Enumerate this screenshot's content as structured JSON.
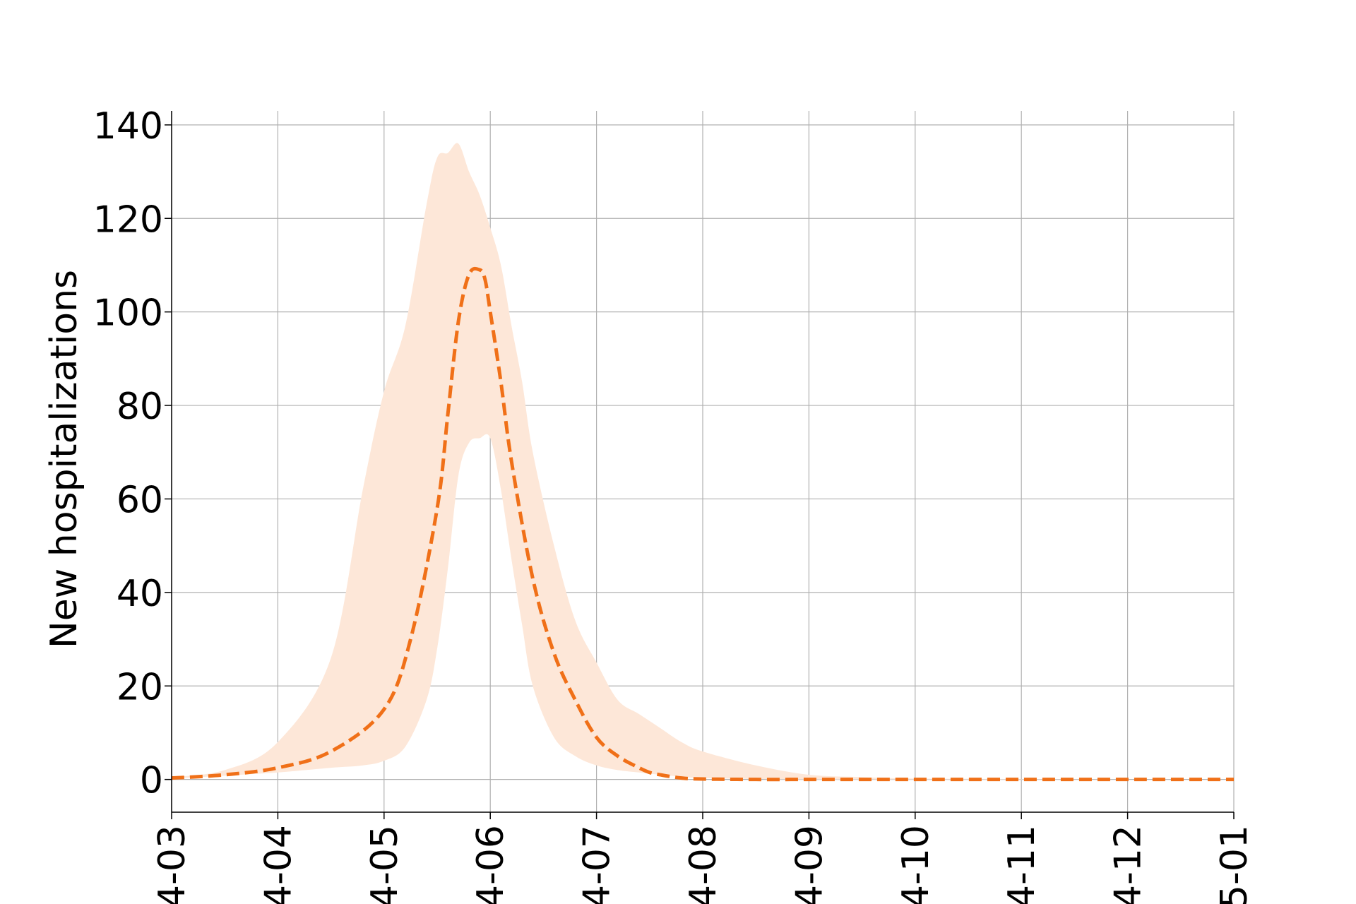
{
  "chart_data": {
    "type": "line",
    "title": "",
    "xlabel": "",
    "ylabel": "New hospitalizations",
    "x_ticks": [
      "4-03",
      "4-04",
      "4-05",
      "4-06",
      "4-07",
      "4-08",
      "4-09",
      "4-10",
      "4-11",
      "4-12",
      "5-01"
    ],
    "xlim": [
      "4-03",
      "5-01"
    ],
    "y_ticks": [
      0,
      20,
      40,
      60,
      80,
      100,
      120,
      140
    ],
    "ylim": [
      -7,
      143
    ],
    "grid": true,
    "colors": {
      "line": "#f07018",
      "band": "#fde7d8",
      "grid": "#b0b0b0",
      "axis": "#000000"
    },
    "series": [
      {
        "style": "dashed",
        "x": [
          0,
          0.5,
          1,
          1.5,
          2,
          2.25,
          2.5,
          2.6,
          2.7,
          2.8,
          2.9,
          2.95,
          3.0,
          3.1,
          3.2,
          3.4,
          3.6,
          3.8,
          4.0,
          4.2,
          4.4,
          4.5,
          4.6,
          4.8,
          5.0,
          5.5,
          6.0,
          6.5,
          7,
          8,
          9,
          10
        ],
        "values": [
          0.3,
          1,
          2.5,
          6,
          15,
          30,
          58,
          78,
          98,
          108,
          109,
          107,
          100,
          85,
          68,
          43,
          27,
          17,
          9,
          5,
          2.5,
          1.5,
          1,
          0.3,
          0.1,
          0,
          0,
          0,
          0,
          0,
          0,
          0
        ]
      }
    ],
    "band": {
      "x": [
        0,
        0.5,
        1,
        1.5,
        1.8,
        2,
        2.2,
        2.4,
        2.5,
        2.6,
        2.7,
        2.8,
        2.9,
        3.0,
        3.1,
        3.2,
        3.3,
        3.4,
        3.6,
        3.8,
        4.0,
        4.2,
        4.4,
        4.6,
        4.8,
        5.0,
        5.5,
        6.0,
        6.5,
        7,
        8,
        9,
        10
      ],
      "lower": [
        0.2,
        0.8,
        1.5,
        2.5,
        3,
        4,
        7,
        17,
        28,
        45,
        65,
        72,
        73,
        73,
        62,
        47,
        33,
        20,
        9,
        5,
        3,
        2,
        1.5,
        1,
        0.6,
        0.3,
        0.1,
        0,
        0,
        0,
        0,
        0,
        0
      ],
      "upper": [
        0.5,
        2,
        8,
        26,
        62,
        83,
        97,
        123,
        133,
        134,
        136,
        130,
        125,
        118,
        110,
        97,
        85,
        70,
        50,
        34,
        25,
        17,
        14,
        11,
        8,
        6,
        3,
        1,
        0.5,
        0.2,
        0.1,
        0,
        0
      ]
    }
  }
}
